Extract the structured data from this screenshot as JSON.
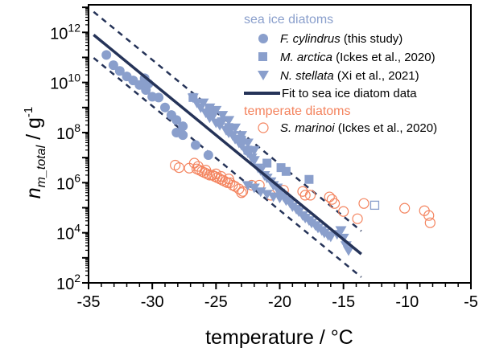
{
  "colors": {
    "sea_ice": "#8a9fcc",
    "temperate": "#f4845f",
    "fit": "#253358",
    "axis": "#000000"
  },
  "chart_data": {
    "type": "scatter",
    "xlabel": "temperature / °C",
    "ylabel_main": "n",
    "ylabel_sub": "m_total",
    "ylabel_unit": " / g",
    "ylabel_unit_sup": "-1",
    "xlim": [
      -35,
      -5
    ],
    "ylim_log10": [
      2,
      13.1
    ],
    "yscale": "log",
    "x_ticks": [
      -35,
      -30,
      -25,
      -20,
      -15,
      -10,
      -5
    ],
    "x_tick_labels": [
      "-35",
      "-30",
      "-25",
      "-20",
      "-15",
      "-10",
      "-5"
    ],
    "y_ticks_log10": [
      2,
      4,
      6,
      8,
      10,
      12
    ],
    "y_tick_base": "10",
    "y_tick_exponents": [
      "2",
      "4",
      "6",
      "8",
      "10",
      "12"
    ],
    "legend": {
      "placement": "top-right",
      "group_sea_ice": "sea ice diatoms",
      "group_temperate": "temperate diatoms",
      "items": [
        {
          "species": "F. cylindrus",
          "ref": " (this study)",
          "marker": "circle"
        },
        {
          "species": "M. arctica",
          "ref": " (Ickes et al., 2020)",
          "marker": "square"
        },
        {
          "species": "N. stellata",
          "ref": " (Xi et al., 2021)",
          "marker": "triangle"
        },
        {
          "species": "",
          "ref": "Fit to sea ice diatom data",
          "marker": "line"
        },
        {
          "species": "S. marinoi",
          "ref": " (Ickes et al., 2020)",
          "marker": "open-circle"
        }
      ]
    },
    "fit": {
      "x": [
        -34.6,
        -13.6
      ],
      "log10_y": [
        11.9,
        3.15
      ],
      "band_log10": 0.92
    },
    "series": [
      {
        "name": "F. cylindrus",
        "marker": "circle",
        "x_log10y": [
          [
            -33.6,
            11.1
          ],
          [
            -33.05,
            10.69
          ],
          [
            -32.55,
            10.46
          ],
          [
            -32.0,
            10.24
          ],
          [
            -31.5,
            10.08
          ],
          [
            -31.0,
            9.9
          ],
          [
            -30.6,
            10.17
          ],
          [
            -30.5,
            9.7
          ],
          [
            -30.3,
            9.95
          ],
          [
            -30.0,
            9.43
          ],
          [
            -29.5,
            9.4
          ],
          [
            -29.0,
            9.0
          ],
          [
            -28.5,
            8.7
          ],
          [
            -28.1,
            8.5
          ],
          [
            -27.6,
            8.25
          ],
          [
            -28.1,
            8.0
          ],
          [
            -27.6,
            7.9
          ],
          [
            -26.6,
            7.5
          ],
          [
            -25.6,
            7.1
          ]
        ]
      },
      {
        "name": "M. arctica",
        "marker": "square",
        "x_log10y": [
          [
            -26.8,
            9.4
          ],
          [
            -25.5,
            8.9
          ],
          [
            -24.0,
            8.2
          ],
          [
            -23.0,
            7.7
          ],
          [
            -22.5,
            7.3
          ],
          [
            -21.0,
            6.78
          ],
          [
            -19.9,
            6.6
          ],
          [
            -19.5,
            6.45
          ],
          [
            -17.7,
            6.13
          ]
        ],
        "open_x_log10y": [
          [
            -12.55,
            5.1
          ]
        ]
      },
      {
        "name": "N. stellata",
        "marker": "triangle",
        "x_log10y": [
          [
            -26.8,
            9.4
          ],
          [
            -26.5,
            9.2
          ],
          [
            -26.2,
            9.0
          ],
          [
            -26.0,
            9.2
          ],
          [
            -25.8,
            8.8
          ],
          [
            -25.5,
            8.6
          ],
          [
            -25.5,
            9.0
          ],
          [
            -25.2,
            8.7
          ],
          [
            -25.0,
            8.4
          ],
          [
            -25.0,
            8.9
          ],
          [
            -24.7,
            8.3
          ],
          [
            -24.5,
            8.45
          ],
          [
            -24.5,
            8.7
          ],
          [
            -24.2,
            8.1
          ],
          [
            -24.0,
            8.0
          ],
          [
            -24.0,
            8.5
          ],
          [
            -23.7,
            7.9
          ],
          [
            -23.5,
            7.75
          ],
          [
            -23.5,
            8.2
          ],
          [
            -23.2,
            7.6
          ],
          [
            -23.0,
            7.5
          ],
          [
            -23.0,
            7.9
          ],
          [
            -22.7,
            7.3
          ],
          [
            -22.5,
            7.2
          ],
          [
            -22.5,
            7.6
          ],
          [
            -22.2,
            7.0
          ],
          [
            -22.0,
            6.9
          ],
          [
            -22.0,
            7.3
          ],
          [
            -21.7,
            6.6
          ],
          [
            -21.5,
            6.5
          ],
          [
            -21.2,
            6.3
          ],
          [
            -21.0,
            6.2
          ],
          [
            -20.7,
            6.05
          ],
          [
            -20.5,
            5.9
          ],
          [
            -20.2,
            5.8
          ],
          [
            -20.0,
            5.6
          ],
          [
            -19.7,
            5.45
          ],
          [
            -19.5,
            5.3
          ],
          [
            -19.2,
            5.2
          ],
          [
            -19.0,
            5.05
          ],
          [
            -18.7,
            4.95
          ],
          [
            -18.5,
            4.85
          ],
          [
            -18.2,
            4.7
          ],
          [
            -18.0,
            4.6
          ],
          [
            -17.7,
            4.5
          ],
          [
            -17.5,
            4.4
          ],
          [
            -17.2,
            4.3
          ],
          [
            -17.0,
            4.2
          ],
          [
            -16.7,
            4.1
          ],
          [
            -16.5,
            4.0
          ],
          [
            -16.2,
            3.9
          ],
          [
            -16.0,
            3.85
          ],
          [
            -15.5,
            3.95
          ],
          [
            -15.2,
            4.1
          ],
          [
            -15.0,
            3.8
          ],
          [
            -14.8,
            3.5
          ],
          [
            -14.6,
            3.3
          ],
          [
            -22.5,
            5.9
          ],
          [
            -22.0,
            5.8
          ],
          [
            -21.5,
            5.65
          ],
          [
            -21.0,
            5.55
          ],
          [
            -20.5,
            5.45
          ],
          [
            -20.0,
            5.4
          ],
          [
            -19.5,
            5.3
          ]
        ]
      },
      {
        "name": "S. marinoi",
        "marker": "open-circle",
        "x_log10y": [
          [
            -28.2,
            6.7
          ],
          [
            -27.9,
            6.6
          ],
          [
            -27.1,
            6.58
          ],
          [
            -26.7,
            6.78
          ],
          [
            -26.5,
            6.55
          ],
          [
            -26.4,
            6.65
          ],
          [
            -26.3,
            6.5
          ],
          [
            -26.1,
            6.45
          ],
          [
            -25.9,
            6.4
          ],
          [
            -25.8,
            6.5
          ],
          [
            -25.7,
            6.35
          ],
          [
            -25.5,
            6.3
          ],
          [
            -25.3,
            6.3
          ],
          [
            -25.1,
            6.25
          ],
          [
            -25.0,
            6.35
          ],
          [
            -24.9,
            6.2
          ],
          [
            -24.7,
            6.15
          ],
          [
            -24.6,
            6.25
          ],
          [
            -24.5,
            6.1
          ],
          [
            -24.3,
            6.05
          ],
          [
            -24.1,
            6.0
          ],
          [
            -24.0,
            6.15
          ],
          [
            -23.9,
            6.0
          ],
          [
            -23.7,
            5.9
          ],
          [
            -23.5,
            5.85
          ],
          [
            -23.2,
            5.75
          ],
          [
            -23.0,
            5.6
          ],
          [
            -22.9,
            5.65
          ],
          [
            -22.2,
            5.9
          ],
          [
            -21.6,
            5.9
          ],
          [
            -20.7,
            5.5
          ],
          [
            -19.7,
            5.7
          ],
          [
            -18.2,
            5.65
          ],
          [
            -18.0,
            5.5
          ],
          [
            -17.6,
            5.5
          ],
          [
            -16.1,
            5.43
          ],
          [
            -15.9,
            5.33
          ],
          [
            -15.7,
            5.17
          ],
          [
            -15.0,
            4.85
          ],
          [
            -13.9,
            4.56
          ],
          [
            -13.4,
            5.17
          ],
          [
            -10.2,
            4.98
          ],
          [
            -8.65,
            4.88
          ],
          [
            -8.3,
            4.69
          ],
          [
            -8.2,
            4.4
          ]
        ]
      }
    ]
  }
}
